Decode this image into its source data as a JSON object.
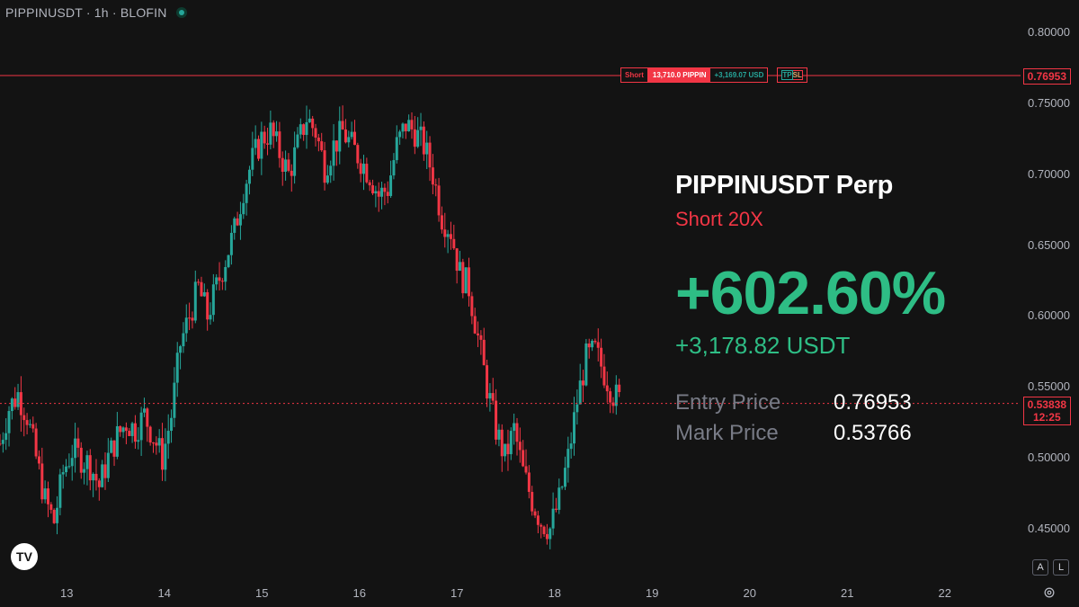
{
  "header": {
    "title": "PIPPINUSDT · 1h · BLOFIN"
  },
  "price_axis": {
    "labels": [
      "0.80000",
      "0.75000",
      "0.70000",
      "0.65000",
      "0.60000",
      "0.55000",
      "0.50000",
      "0.45000"
    ],
    "values": [
      0.8,
      0.75,
      0.7,
      0.65,
      0.6,
      0.55,
      0.5,
      0.45
    ]
  },
  "time_axis": {
    "labels": [
      "13",
      "14",
      "15",
      "16",
      "17",
      "18",
      "19",
      "20",
      "21",
      "22"
    ]
  },
  "position": {
    "side": "Short",
    "quantity": "13,710.0 PIPPIN",
    "pnl": "+3,169.07 USD",
    "tp_label": "TP",
    "sl_label": "SL",
    "entry_price": 0.76953,
    "entry_price_tag": "0.76953"
  },
  "current_price": {
    "value": 0.53838,
    "tag": "0.53838",
    "countdown": "12:25"
  },
  "panel": {
    "symbol": "PIPPINUSDT Perp",
    "side_leverage": "Short  20X",
    "roi": "+602.60%",
    "pnl": "+3,178.82 USDT",
    "entry_label": "Entry Price",
    "entry_value": "0.76953",
    "mark_label": "Mark Price",
    "mark_value": "0.53766"
  },
  "controls": {
    "auto_label": "A",
    "log_label": "L"
  },
  "colors": {
    "up": "#26a69a",
    "down": "#f23645",
    "background": "#131313",
    "profit": "#2ebd85"
  },
  "chart_data": {
    "type": "candlestick",
    "symbol": "PIPPINUSDT",
    "interval": "1h",
    "exchange": "BLOFIN",
    "ylim": [
      0.43,
      0.81
    ],
    "x_ticks": [
      "13",
      "14",
      "15",
      "16",
      "17",
      "18",
      "19",
      "20",
      "21",
      "22"
    ],
    "close_path": [
      0.51,
      0.535,
      0.545,
      0.53,
      0.5,
      0.47,
      0.455,
      0.49,
      0.505,
      0.5,
      0.495,
      0.48,
      0.5,
      0.515,
      0.525,
      0.52,
      0.53,
      0.515,
      0.5,
      0.53,
      0.58,
      0.6,
      0.62,
      0.6,
      0.62,
      0.64,
      0.66,
      0.69,
      0.71,
      0.725,
      0.73,
      0.715,
      0.7,
      0.72,
      0.74,
      0.73,
      0.705,
      0.72,
      0.73,
      0.72,
      0.71,
      0.7,
      0.685,
      0.69,
      0.72,
      0.735,
      0.73,
      0.72,
      0.7,
      0.67,
      0.66,
      0.63,
      0.62,
      0.585,
      0.55,
      0.52,
      0.5,
      0.52,
      0.49,
      0.47,
      0.455,
      0.45,
      0.47,
      0.5,
      0.54,
      0.57,
      0.575,
      0.56,
      0.545,
      0.53838
    ]
  }
}
